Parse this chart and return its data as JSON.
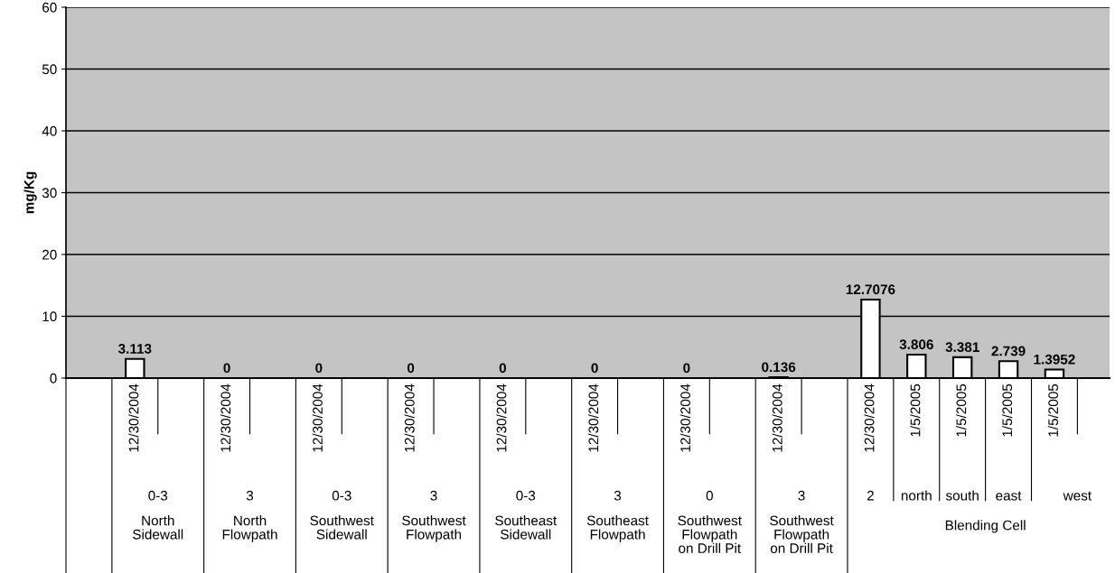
{
  "chart_data": {
    "type": "bar",
    "ylabel": "mg/Kg",
    "categories": [
      null,
      "12/30/2004",
      null,
      "12/30/2004",
      null,
      "12/30/2004",
      null,
      "12/30/2004",
      null,
      "12/30/2004",
      null,
      "12/30/2004",
      null,
      "12/30/2004",
      null,
      "12/30/2004",
      null,
      "12/30/2004",
      "1/5/2005",
      "1/5/2005",
      "1/5/2005",
      "1/5/2005",
      null
    ],
    "values": [
      null,
      3.113,
      null,
      0,
      null,
      0,
      null,
      0,
      null,
      0,
      null,
      0,
      null,
      0,
      null,
      0.136,
      null,
      12.7076,
      3.806,
      3.381,
      2.739,
      1.3952,
      null
    ],
    "color": "#ffffff",
    "ylim": [
      0,
      60
    ],
    "yticks": [
      0,
      10,
      20,
      30,
      40,
      50,
      60
    ],
    "grid": "y",
    "data_labels": true,
    "annotations": [
      "0-3",
      "North\nSidewall",
      "3",
      "North\nFlowpath",
      "0-3",
      "Southwest\nSidewall",
      "3",
      "Southwest\nFlowpath",
      "0-3",
      "Southeast\nSidewall",
      "3",
      "Southeast\nFlowpath",
      "0",
      "Southwest\nFlowpath\non Drill Pit",
      "3",
      "Southwest\nFlowpath\non Drill Pit",
      "2",
      "north",
      "south",
      "east",
      "west",
      "Blending Cell"
    ]
  }
}
